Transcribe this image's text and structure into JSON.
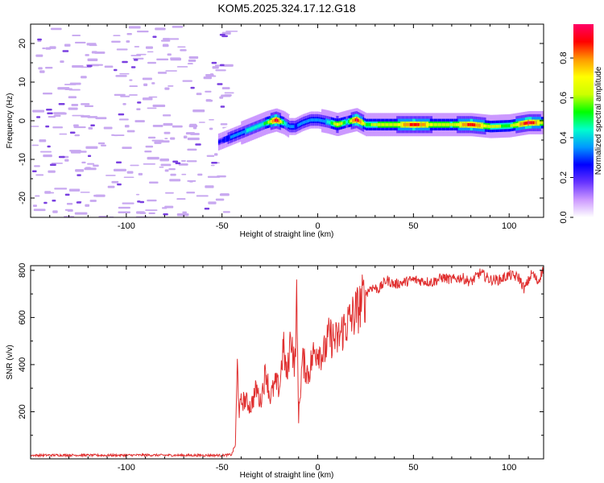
{
  "title": "KOM5.2025.324.17.12.G18",
  "colors": {
    "snr_line": "#e03030",
    "axis": "#000000",
    "noise_speckle": "#c8a8f0",
    "noise_core": "#7a40e0",
    "colormap": [
      "#ffffff",
      "#cc99ff",
      "#6633ff",
      "#0000ff",
      "#0099ff",
      "#00ffcc",
      "#00ff00",
      "#ccff00",
      "#ffff00",
      "#ff9900",
      "#ff0000",
      "#ff0066"
    ]
  },
  "chart_data": [
    {
      "type": "heatmap",
      "title": "KOM5.2025.324.17.12.G18",
      "xlabel": "Height of straight line (km)",
      "ylabel": "Frequency (Hz)",
      "xlim": [
        -150,
        118
      ],
      "ylim": [
        -25,
        25
      ],
      "xticks": [
        -100,
        -50,
        0,
        50,
        100
      ],
      "xtick_labels": [
        "-100",
        "-50",
        "0",
        "50",
        "100"
      ],
      "yticks": [
        -20,
        -10,
        0,
        10,
        20
      ],
      "ytick_labels": [
        "-20",
        "-10",
        "0",
        "10",
        "20"
      ],
      "noise_region_x": [
        -150,
        -47
      ],
      "signal_track": {
        "x": [
          -52,
          -47,
          -42,
          -37,
          -32,
          -27,
          -22,
          -18,
          -15,
          -12,
          -8,
          -4,
          0,
          5,
          10,
          15,
          20,
          25,
          30,
          40,
          50,
          60,
          70,
          80,
          90,
          100,
          110,
          118
        ],
        "frequency": [
          -5.5,
          -4.5,
          -3.5,
          -2.5,
          -1.5,
          -0.5,
          0.2,
          -0.5,
          -1.5,
          -1.5,
          -0.5,
          0.2,
          0.2,
          -0.3,
          -1.0,
          -0.3,
          0.3,
          -1.0,
          -1.0,
          -1.0,
          -1.0,
          -1.0,
          -1.0,
          -1.0,
          -1.5,
          -1.3,
          -0.5,
          -0.5
        ],
        "amplitude": [
          0.25,
          0.3,
          0.35,
          0.4,
          0.45,
          0.5,
          0.95,
          0.45,
          0.35,
          0.3,
          0.35,
          0.35,
          0.35,
          0.4,
          0.7,
          0.45,
          0.95,
          0.55,
          0.6,
          0.65,
          0.9,
          0.65,
          0.6,
          0.9,
          0.6,
          0.55,
          0.95,
          0.6
        ]
      },
      "colorbar": {
        "label": "Normalized spectral amplitude",
        "range": [
          0,
          0.97
        ],
        "ticks": [
          0.0,
          0.2,
          0.4,
          0.6,
          0.8
        ],
        "tick_labels": [
          "0.0",
          "0.2",
          "0.4",
          "0.6",
          "0.8"
        ]
      }
    },
    {
      "type": "line",
      "xlabel": "Height of straight line (km)",
      "ylabel": "SNR (v/v)",
      "xlim": [
        -150,
        118
      ],
      "ylim": [
        0,
        820
      ],
      "xticks": [
        -100,
        -50,
        0,
        50,
        100
      ],
      "xtick_labels": [
        "-100",
        "-50",
        "0",
        "50",
        "100"
      ],
      "yticks": [
        200,
        400,
        600,
        800
      ],
      "ytick_labels": [
        "200",
        "400",
        "600",
        "800"
      ],
      "series": [
        {
          "name": "SNR",
          "x": [
            -150,
            -130,
            -110,
            -90,
            -70,
            -50,
            -45,
            -43,
            -42,
            -41,
            -40,
            -38,
            -35,
            -32,
            -30,
            -27,
            -25,
            -22,
            -20,
            -18,
            -16,
            -14,
            -12,
            -11,
            -10,
            -8,
            -5,
            -2,
            0,
            3,
            6,
            10,
            14,
            18,
            22,
            25,
            28,
            32,
            36,
            40,
            45,
            50,
            55,
            60,
            65,
            70,
            75,
            80,
            85,
            90,
            95,
            100,
            105,
            108,
            112,
            115,
            118
          ],
          "values": [
            15,
            16,
            15,
            16,
            15,
            15,
            18,
            60,
            400,
            200,
            240,
            250,
            220,
            300,
            240,
            380,
            260,
            320,
            300,
            480,
            340,
            540,
            380,
            660,
            180,
            420,
            360,
            450,
            470,
            440,
            520,
            500,
            560,
            600,
            650,
            700,
            730,
            720,
            760,
            740,
            750,
            760,
            755,
            750,
            770,
            760,
            770,
            750,
            790,
            760,
            760,
            780,
            770,
            720,
            790,
            750,
            810
          ]
        }
      ]
    }
  ]
}
